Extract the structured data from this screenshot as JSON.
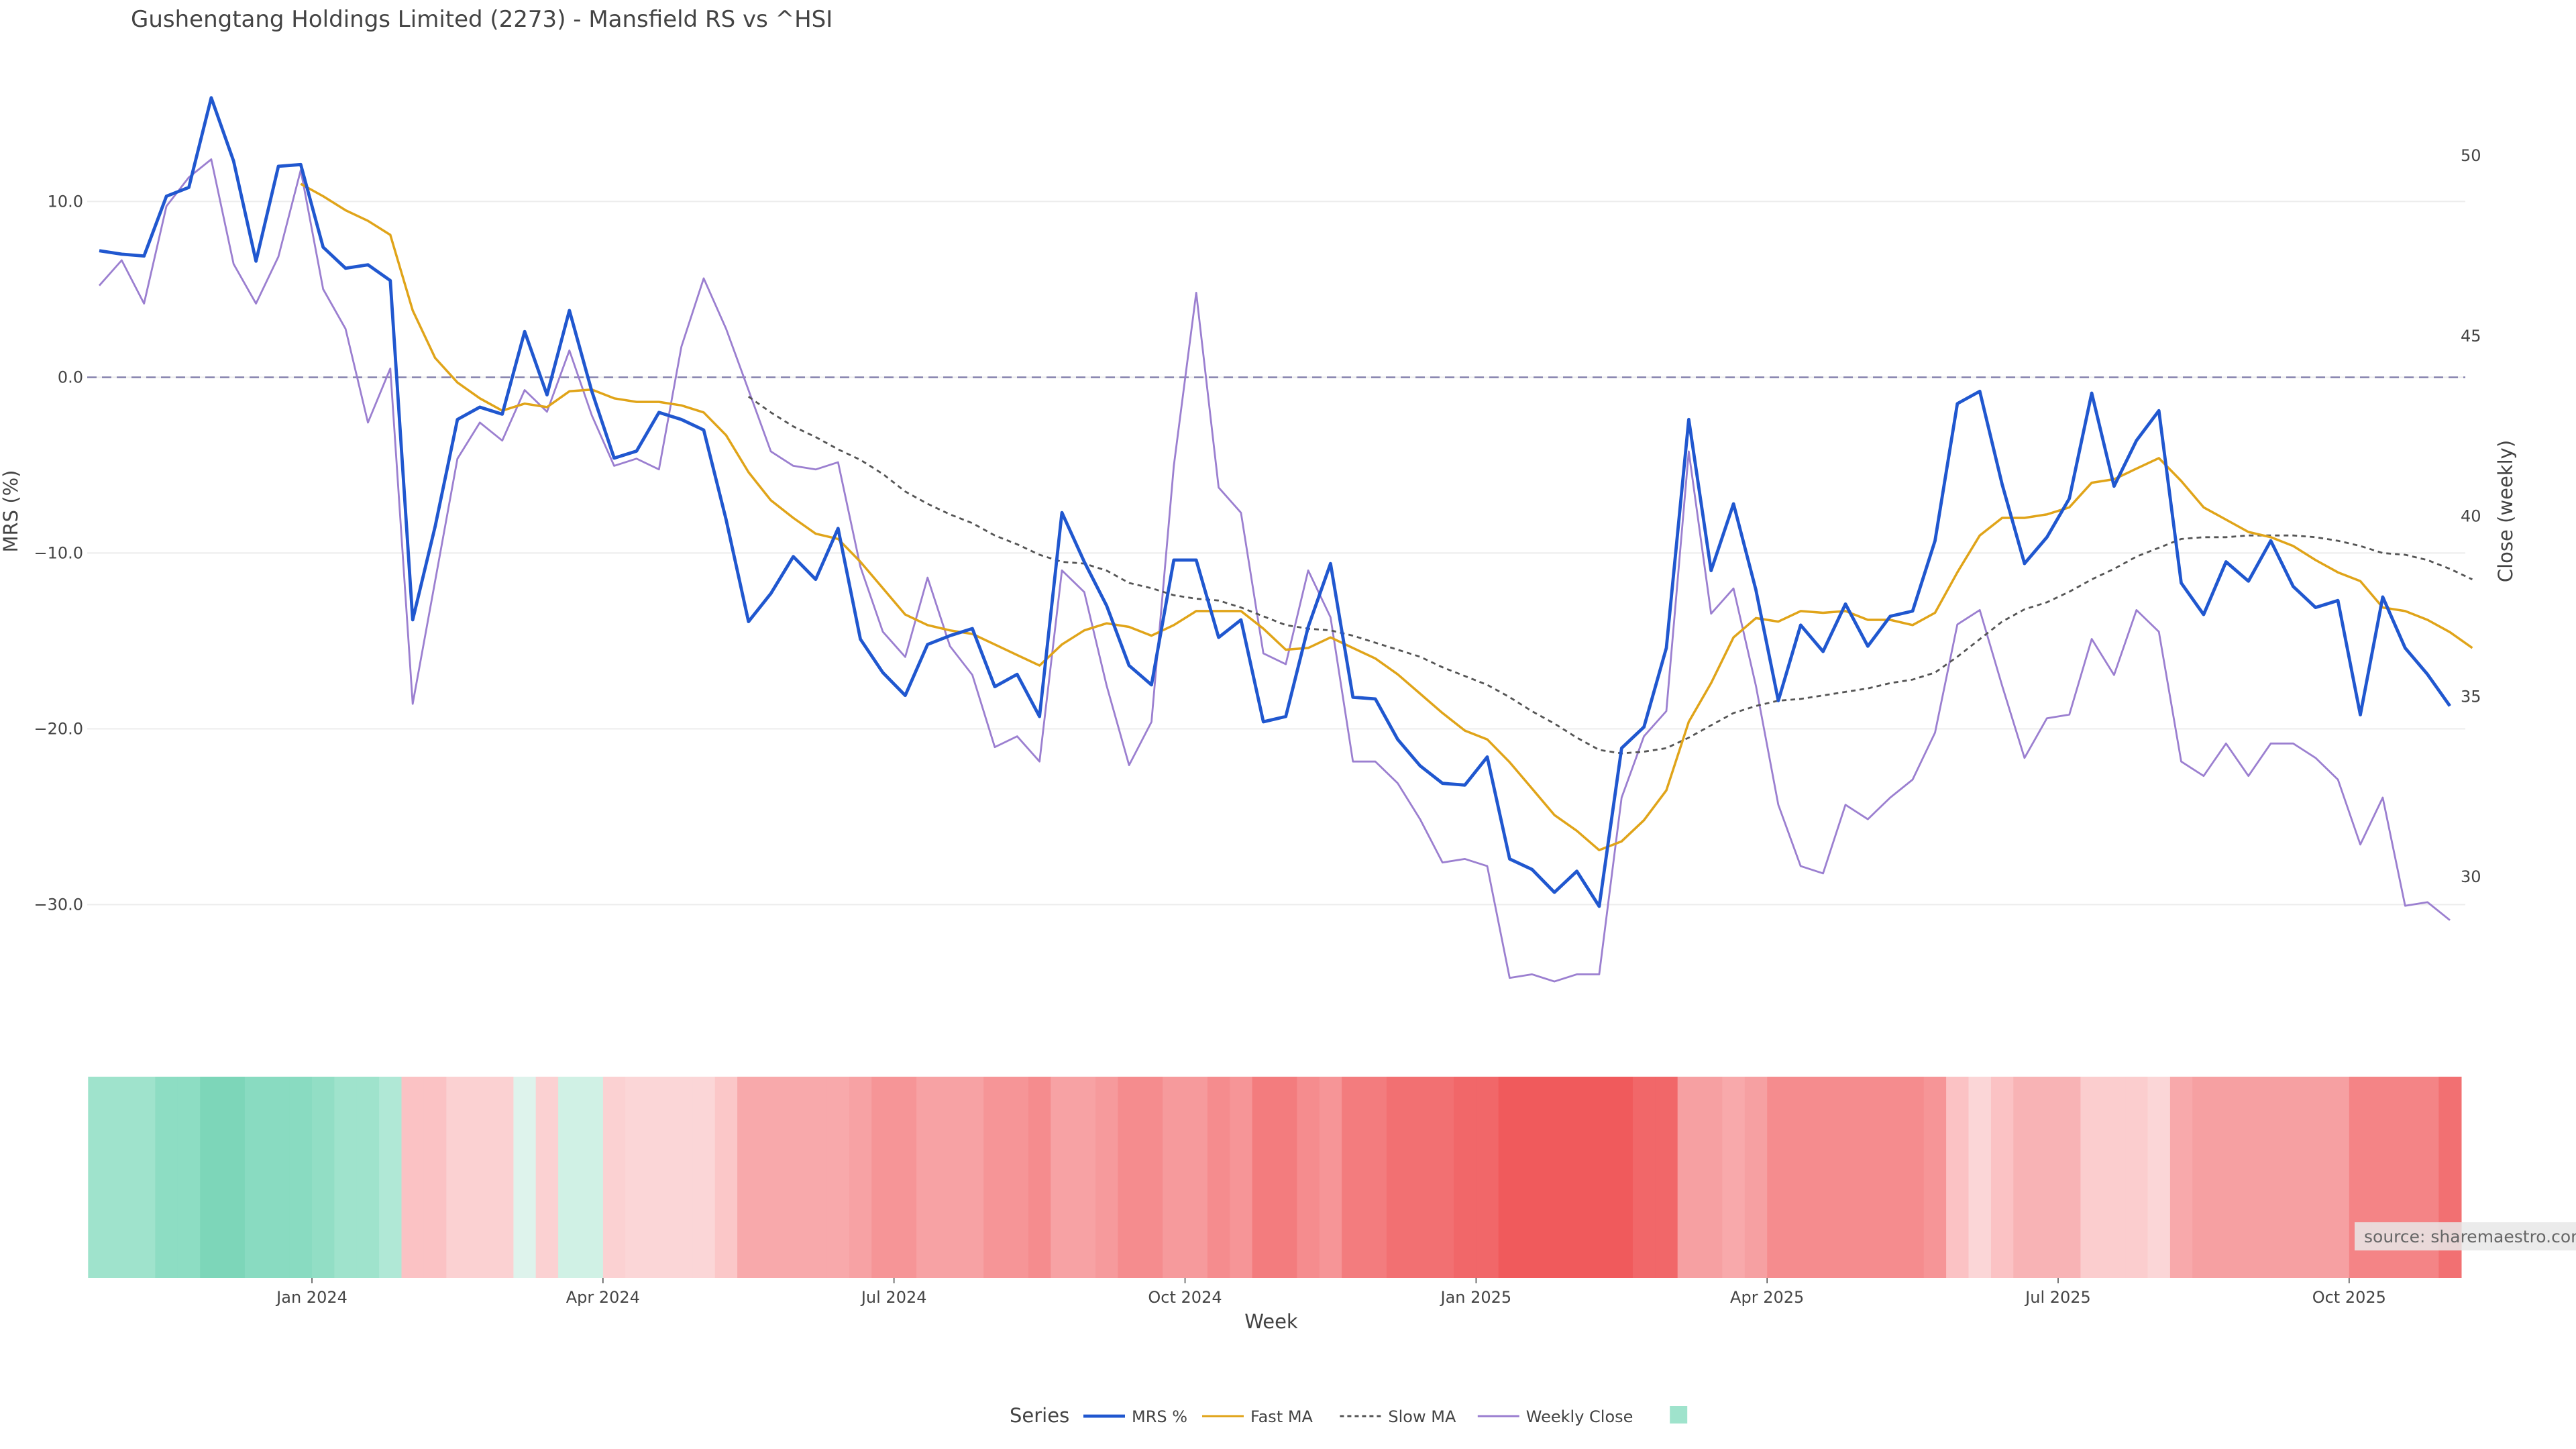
{
  "chart_data": {
    "type": "line",
    "title": "Gushengtang Holdings Limited (2273) - Mansfield RS vs ^HSI",
    "xlabel": "Week",
    "ylabel_left": "MRS (%)",
    "ylabel_right": "Close (weekly)",
    "ylim_left": [
      -35.4,
      16.5
    ],
    "ylim_right": [
      26.6,
      51.9
    ],
    "yticks_left": [
      {
        "v": 10,
        "label": "10.0"
      },
      {
        "v": 0,
        "label": "0.0"
      },
      {
        "v": -10,
        "label": "−10.0"
      },
      {
        "v": -20,
        "label": "−20.0"
      },
      {
        "v": -30,
        "label": "−30.0"
      }
    ],
    "yticks_right": [
      {
        "v": 50,
        "label": "50"
      },
      {
        "v": 45,
        "label": "45"
      },
      {
        "v": 40,
        "label": "40"
      },
      {
        "v": 35,
        "label": "35"
      },
      {
        "v": 30,
        "label": "30"
      }
    ],
    "xticks": [
      {
        "i": 9.5,
        "label": "Jan 2024"
      },
      {
        "i": 22.5,
        "label": "Apr 2024"
      },
      {
        "i": 35.5,
        "label": "Jul 2024"
      },
      {
        "i": 48.5,
        "label": "Oct 2024"
      },
      {
        "i": 61.5,
        "label": "Jan 2025"
      },
      {
        "i": 74.5,
        "label": "Apr 2025"
      },
      {
        "i": 87.5,
        "label": "Jul 2025"
      },
      {
        "i": 100.5,
        "label": "Oct 2025"
      }
    ],
    "zero_line": 0,
    "series": [
      {
        "name": "MRS %",
        "color": "#2057cf",
        "axis": "left",
        "values": [
          7.2,
          7.0,
          6.9,
          10.3,
          10.8,
          15.9,
          12.3,
          6.6,
          12.0,
          12.1,
          7.4,
          6.2,
          6.4,
          5.5,
          -13.8,
          -8.5,
          -2.4,
          -1.7,
          -2.1,
          2.6,
          -1.0,
          3.8,
          -0.8,
          -4.6,
          -4.2,
          -2.0,
          -2.4,
          -3.0,
          -8.1,
          -13.9,
          -12.3,
          -10.2,
          -11.5,
          -8.6,
          -14.9,
          -16.8,
          -18.1,
          -15.2,
          -14.7,
          -14.3,
          -17.6,
          -16.9,
          -19.3,
          -7.7,
          -10.5,
          -13.0,
          -16.4,
          -17.5,
          -10.4,
          -10.4,
          -14.8,
          -13.8,
          -19.6,
          -19.3,
          -14.2,
          -10.6,
          -18.2,
          -18.3,
          -20.6,
          -22.1,
          -23.1,
          -23.2,
          -21.6,
          -27.4,
          -28.0,
          -29.3,
          -28.1,
          -30.1,
          -21.1,
          -19.9,
          -15.4,
          -2.4,
          -11.0,
          -7.2,
          -12.1,
          -18.4,
          -14.1,
          -15.6,
          -12.9,
          -15.3,
          -13.6,
          -13.3,
          -9.3,
          -1.5,
          -0.8,
          -6.1,
          -10.6,
          -9.1,
          -6.9,
          -0.9,
          -6.2,
          -3.6,
          -1.9,
          -11.7,
          -13.5,
          -10.5,
          -11.6,
          -9.3,
          -11.9,
          -13.1,
          -12.7,
          -19.2,
          -12.5,
          -15.4,
          -16.9,
          -18.7
        ]
      },
      {
        "name": "Fast MA",
        "color": "#e0a419",
        "axis": "left",
        "values": [
          null,
          null,
          null,
          null,
          null,
          null,
          null,
          null,
          null,
          11.0,
          10.3,
          9.5,
          8.9,
          8.1,
          3.8,
          1.1,
          -0.3,
          -1.2,
          -1.9,
          -1.5,
          -1.7,
          -0.8,
          -0.7,
          -1.2,
          -1.4,
          -1.4,
          -1.6,
          -2.0,
          -3.3,
          -5.4,
          -7.0,
          -8.0,
          -8.9,
          -9.2,
          -10.5,
          -12.0,
          -13.5,
          -14.1,
          -14.4,
          -14.6,
          -15.2,
          -15.8,
          -16.4,
          -15.2,
          -14.4,
          -14.0,
          -14.2,
          -14.7,
          -14.1,
          -13.3,
          -13.3,
          -13.3,
          -14.3,
          -15.5,
          -15.4,
          -14.8,
          -15.4,
          -16.0,
          -16.9,
          -18.0,
          -19.1,
          -20.1,
          -20.6,
          -21.9,
          -23.4,
          -24.9,
          -25.8,
          -26.9,
          -26.4,
          -25.2,
          -23.5,
          -19.6,
          -17.4,
          -14.8,
          -13.7,
          -13.9,
          -13.3,
          -13.4,
          -13.3,
          -13.8,
          -13.8,
          -14.1,
          -13.4,
          -11.1,
          -9.0,
          -8.0,
          -8.0,
          -7.8,
          -7.4,
          -6.0,
          -5.8,
          -5.2,
          -4.6,
          -5.9,
          -7.4,
          -8.1,
          -8.8,
          -9.1,
          -9.6,
          -10.4,
          -11.1,
          -11.6,
          -13.1,
          -13.3,
          -13.8,
          -14.5,
          -15.4
        ]
      },
      {
        "name": "Slow MA",
        "color": "#555555",
        "axis": "left",
        "dash": "7,6",
        "values": [
          null,
          null,
          null,
          null,
          null,
          null,
          null,
          null,
          null,
          null,
          null,
          null,
          null,
          null,
          null,
          null,
          null,
          null,
          null,
          null,
          null,
          null,
          null,
          null,
          null,
          null,
          null,
          null,
          null,
          -1.1,
          -2.0,
          -2.8,
          -3.4,
          -4.1,
          -4.7,
          -5.5,
          -6.5,
          -7.2,
          -7.8,
          -8.3,
          -9.0,
          -9.5,
          -10.1,
          -10.5,
          -10.6,
          -11.0,
          -11.7,
          -12.0,
          -12.4,
          -12.6,
          -12.7,
          -13.1,
          -13.6,
          -14.1,
          -14.3,
          -14.4,
          -14.7,
          -15.1,
          -15.5,
          -15.9,
          -16.5,
          -17.0,
          -17.5,
          -18.2,
          -19.0,
          -19.7,
          -20.5,
          -21.2,
          -21.4,
          -21.3,
          -21.1,
          -20.5,
          -19.8,
          -19.1,
          -18.7,
          -18.4,
          -18.3,
          -18.1,
          -17.9,
          -17.7,
          -17.4,
          -17.2,
          -16.8,
          -15.9,
          -14.9,
          -13.9,
          -13.2,
          -12.8,
          -12.2,
          -11.5,
          -10.9,
          -10.2,
          -9.7,
          -9.2,
          -9.1,
          -9.1,
          -9.0,
          -9.0,
          -9.0,
          -9.1,
          -9.3,
          -9.6,
          -10.0,
          -10.1,
          -10.4,
          -10.9,
          -11.5
        ]
      },
      {
        "name": "Weekly Close",
        "color": "#9b7fd0",
        "axis": "right",
        "values": [
          46.4,
          47.1,
          45.9,
          48.6,
          49.4,
          49.9,
          47.0,
          45.9,
          47.2,
          49.6,
          46.3,
          45.2,
          42.6,
          44.1,
          34.8,
          38.2,
          41.6,
          42.6,
          42.1,
          43.5,
          42.9,
          44.6,
          42.8,
          41.4,
          41.6,
          41.3,
          44.7,
          46.6,
          45.2,
          43.5,
          41.8,
          41.4,
          41.3,
          41.5,
          38.6,
          36.8,
          36.1,
          38.3,
          36.4,
          35.6,
          33.6,
          33.9,
          33.2,
          38.5,
          37.9,
          35.3,
          33.1,
          34.3,
          41.4,
          46.2,
          40.8,
          40.1,
          36.2,
          35.9,
          38.5,
          37.2,
          33.2,
          33.2,
          32.6,
          31.6,
          30.4,
          30.5,
          30.3,
          27.2,
          27.3,
          27.1,
          27.3,
          27.3,
          32.2,
          33.9,
          34.6,
          41.8,
          37.3,
          38.0,
          35.3,
          32.0,
          30.3,
          30.1,
          32.0,
          31.6,
          32.2,
          32.7,
          34.0,
          37.0,
          37.4,
          35.3,
          33.3,
          34.4,
          34.5,
          36.6,
          35.6,
          37.4,
          36.8,
          33.2,
          32.8,
          33.7,
          32.8,
          33.7,
          33.7,
          33.3,
          32.7,
          30.9,
          32.2,
          29.2,
          29.3,
          28.8
        ]
      }
    ],
    "heatmap": {
      "rows": 1,
      "colors": [
        "#9fe3cc",
        "#9fe3cc",
        "#9fe3cc",
        "#8dddc3",
        "#8dddc3",
        "#7dd6b9",
        "#7dd6b9",
        "#89dbc1",
        "#89dbc1",
        "#89dbc1",
        "#92dec5",
        "#9fe3cc",
        "#9fe3cc",
        "#b0e8d6",
        "#fbc2c4",
        "#fbc2c4",
        "#fbd1d2",
        "#fbd1d2",
        "#fbd1d2",
        "#def3ec",
        "#fbd1d2",
        "#d0f1e5",
        "#d0f1e5",
        "#fbd1d2",
        "#fbd6d7",
        "#fbd6d7",
        "#fbd6d7",
        "#fbd6d7",
        "#fbc7c8",
        "#f8a9ab",
        "#f8a9ab",
        "#f8a9ab",
        "#f8a9ab",
        "#f8a9ab",
        "#f7a2a4",
        "#f69597",
        "#f69597",
        "#f7a2a4",
        "#f7a2a4",
        "#f7a2a4",
        "#f69597",
        "#f69597",
        "#f58c8e",
        "#f7a2a4",
        "#f7a2a4",
        "#f69a9c",
        "#f58c8e",
        "#f58c8e",
        "#f69a9c",
        "#f69a9c",
        "#f58c8e",
        "#f69597",
        "#f37c7e",
        "#f37c7e",
        "#f58c8e",
        "#f69597",
        "#f37c7e",
        "#f37c7e",
        "#f27072",
        "#f27072",
        "#f27072",
        "#f16769",
        "#f16769",
        "#f05a5c",
        "#f05a5c",
        "#f05a5c",
        "#f05a5c",
        "#f05a5c",
        "#f05a5c",
        "#f16769",
        "#f16769",
        "#f6a0a2",
        "#f6a0a2",
        "#f8a9ab",
        "#f6a0a2",
        "#f58c8e",
        "#f58c8e",
        "#f58c8e",
        "#f58c8e",
        "#f58c8e",
        "#f58c8e",
        "#f58c8e",
        "#f69597",
        "#fbc2c4",
        "#fbd6d7",
        "#fbc2c4",
        "#f8b3b5",
        "#f8b3b5",
        "#f8b3b5",
        "#fbcdce",
        "#fbcdce",
        "#fbcdce",
        "#fbd6d7",
        "#f8a9ab",
        "#f6a0a2",
        "#f6a0a2",
        "#f6a0a2",
        "#f6a0a2",
        "#f6a0a2",
        "#f6a0a2",
        "#f6a0a2",
        "#f48486",
        "#f48486",
        "#f48486",
        "#f48486",
        "#f27072"
      ]
    },
    "legend": {
      "title": "Series",
      "placement": "bottom-center"
    },
    "source_note": "source: sharemaestro.com"
  }
}
